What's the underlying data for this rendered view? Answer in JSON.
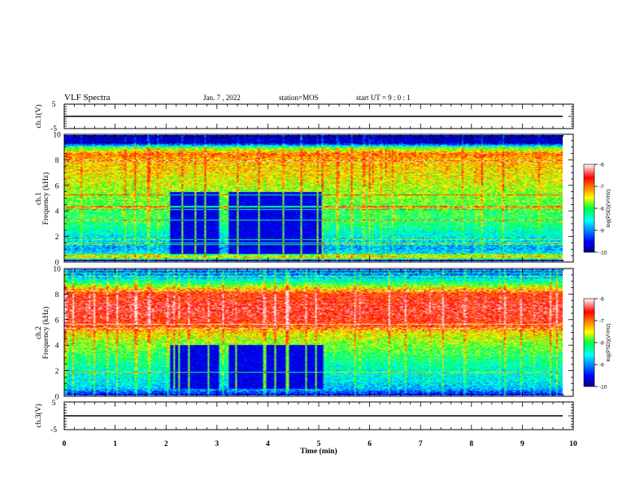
{
  "header": {
    "title": "VLF Spectra",
    "date": "Jan. 7 , 2022",
    "station": "station=MOS",
    "start": "start UT = 9 : 0 : 1"
  },
  "chart_data": [
    {
      "type": "line",
      "panel": "waveform-ch1",
      "ylabel": "ch.1(V)",
      "ylim": [
        -5,
        5
      ],
      "yticks": [
        "5",
        "-5"
      ],
      "x": [
        0,
        10
      ],
      "values": [
        0,
        0
      ],
      "color": "#000000"
    },
    {
      "type": "heatmap",
      "panel": "spectrogram-ch1",
      "ylabel": "ch.1\nFrequency (kHz)",
      "ylim": [
        0,
        10
      ],
      "yticks": [
        "0",
        "2",
        "4",
        "6",
        "8",
        "10"
      ],
      "xlim": [
        0,
        10
      ],
      "colorbar": {
        "label": "log(PSD)(V²/Hz)",
        "ticks": [
          "-6",
          "-7",
          "-8",
          "-9",
          "-10"
        ],
        "range": [
          -10,
          -6
        ]
      },
      "profile": {
        "freq_khz": [
          0,
          0.3,
          0.6,
          1,
          1.5,
          2,
          2.5,
          3,
          4,
          5,
          6,
          7,
          8,
          8.5,
          9,
          9.4,
          10
        ],
        "log_psd": [
          -10,
          -7.2,
          -8.6,
          -8.9,
          -8.7,
          -8.5,
          -8.3,
          -8.1,
          -8.0,
          -7.8,
          -7.6,
          -7.4,
          -7.3,
          -7.0,
          -7.8,
          -9.8,
          -9.9
        ]
      },
      "quiet_intervals_min": [
        [
          2.1,
          3.1
        ],
        [
          3.3,
          5.2
        ]
      ],
      "quiet_freq_range_khz": [
        0.5,
        5.5
      ]
    },
    {
      "type": "heatmap",
      "panel": "spectrogram-ch2",
      "ylabel": "ch.2\nFrequency (kHz)",
      "ylim": [
        0,
        10
      ],
      "yticks": [
        "0",
        "2",
        "4",
        "6",
        "8",
        "10"
      ],
      "xlim": [
        0,
        10
      ],
      "colorbar": {
        "label": "log(PSD)(V²/Hz)",
        "ticks": [
          "-6",
          "-7",
          "-8",
          "-9",
          "-10"
        ],
        "range": [
          -10,
          -6
        ]
      },
      "profile": {
        "freq_khz": [
          0,
          0.5,
          1,
          2,
          3,
          4,
          5,
          5.5,
          6,
          7,
          8,
          8.5,
          9,
          9.5,
          10
        ],
        "log_psd": [
          -9.6,
          -8.8,
          -8.6,
          -8.4,
          -8.1,
          -7.8,
          -7.4,
          -6.9,
          -6.6,
          -6.5,
          -6.7,
          -7.4,
          -8.2,
          -8.9,
          -9.4
        ]
      },
      "quiet_intervals_min": [
        [
          2.1,
          3.1
        ],
        [
          3.3,
          5.2
        ]
      ],
      "quiet_freq_range_khz": [
        0.5,
        4.0
      ]
    },
    {
      "type": "line",
      "panel": "waveform-ch3",
      "ylabel": "ch.3(V)",
      "ylim": [
        -5,
        5
      ],
      "yticks": [
        "5",
        "-5"
      ],
      "x": [
        0,
        10
      ],
      "values": [
        0,
        0
      ],
      "color": "#000000"
    }
  ],
  "xaxis": {
    "label": "Time (min)",
    "ticks": [
      "0",
      "1",
      "2",
      "3",
      "4",
      "5",
      "6",
      "7",
      "8",
      "9",
      "10"
    ],
    "xlim": [
      0,
      10
    ]
  }
}
